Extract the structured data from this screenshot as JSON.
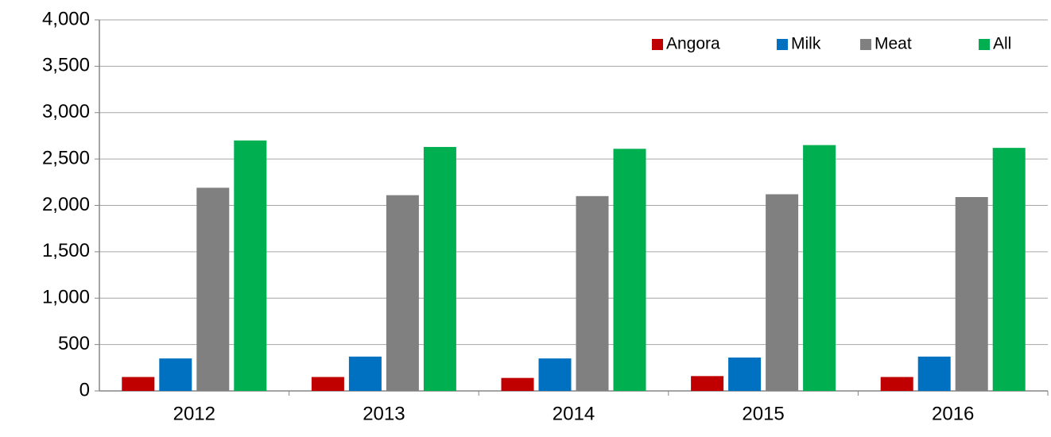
{
  "chart_data": {
    "type": "bar",
    "categories": [
      "2012",
      "2013",
      "2014",
      "2015",
      "2016"
    ],
    "series": [
      {
        "name": "Angora",
        "color": "#c00000",
        "values": [
          150,
          150,
          140,
          160,
          150
        ]
      },
      {
        "name": "Milk",
        "color": "#0070c0",
        "values": [
          350,
          370,
          350,
          360,
          370
        ]
      },
      {
        "name": "Meat",
        "color": "#808080",
        "values": [
          2190,
          2110,
          2100,
          2120,
          2090
        ]
      },
      {
        "name": "All",
        "color": "#00b050",
        "values": [
          2700,
          2630,
          2610,
          2650,
          2620
        ]
      }
    ],
    "ylim": [
      0,
      4000
    ],
    "yticks": [
      0,
      500,
      {
        "value": 1000,
        "label": "1,000"
      },
      {
        "value": 1500,
        "label": "1,500"
      },
      {
        "value": 2000,
        "label": "2,000"
      },
      {
        "value": 2500,
        "label": "2,500"
      },
      {
        "value": 3000,
        "label": "3,000"
      },
      {
        "value": 3500,
        "label": "3,500"
      },
      {
        "value": 4000,
        "label": "4,000"
      }
    ],
    "grid": true,
    "legend": "top-right"
  }
}
